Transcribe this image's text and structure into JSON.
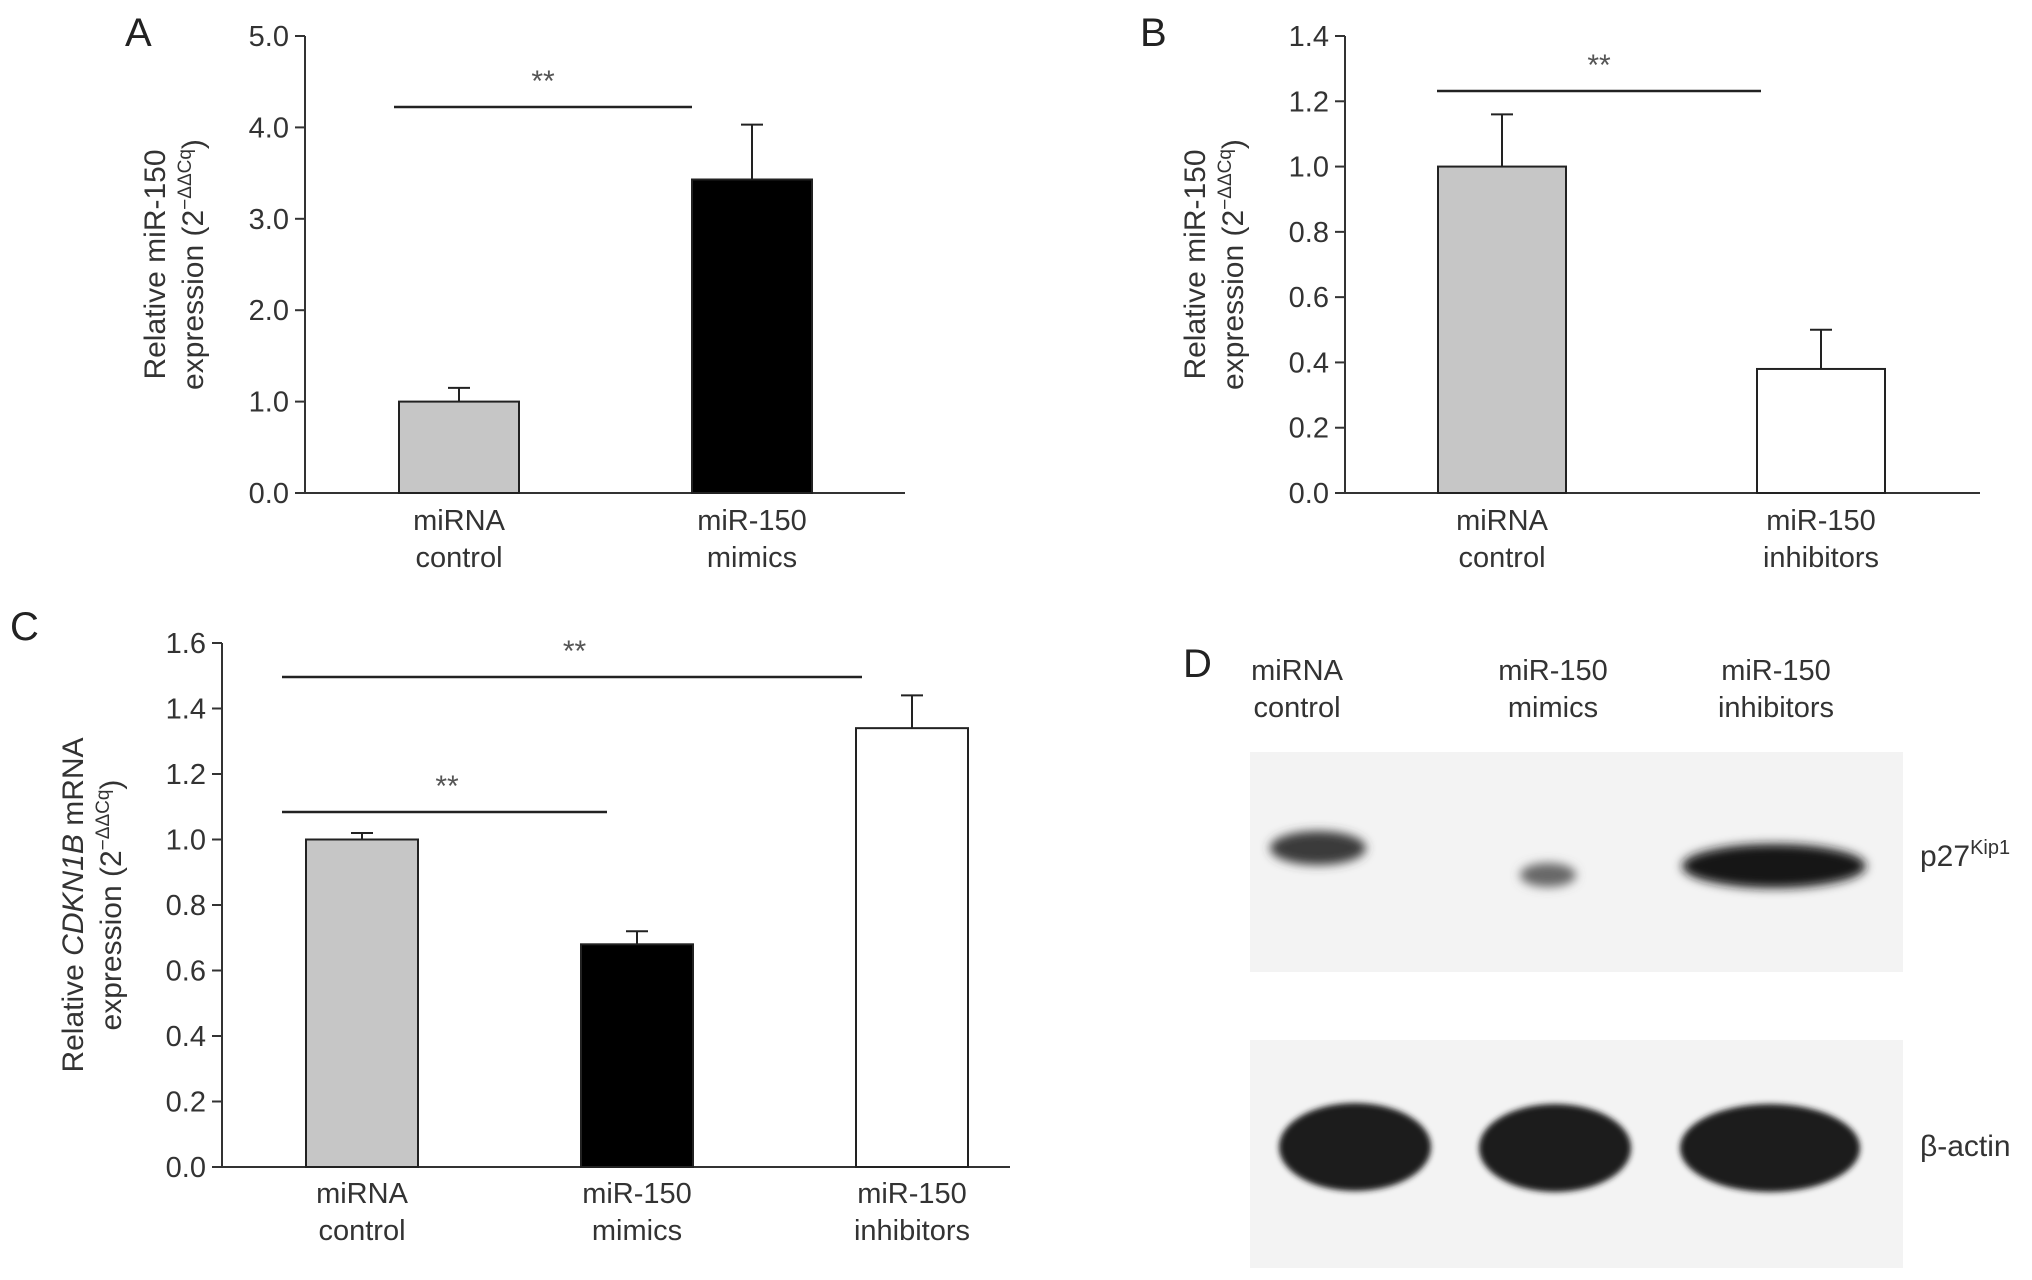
{
  "panels": {
    "a": {
      "letter": "A"
    },
    "b": {
      "letter": "B"
    },
    "c": {
      "letter": "C"
    },
    "d": {
      "letter": "D"
    }
  },
  "chart_data": [
    {
      "id": "A",
      "type": "bar",
      "ylabel": "Relative miR-150 expression (2^-ΔΔCq)",
      "ylim": [
        0,
        5
      ],
      "yticks": [
        "0.0",
        "1.0",
        "2.0",
        "3.0",
        "4.0",
        "5.0"
      ],
      "categories": [
        [
          "miRNA",
          "control"
        ],
        [
          "miR-150",
          "mimics"
        ]
      ],
      "values": [
        1.0,
        3.43
      ],
      "errors": [
        0.15,
        0.6
      ],
      "fills": [
        "#c6c6c6",
        "#000000"
      ],
      "significance": [
        {
          "from": 0,
          "to": 1,
          "label": "**"
        }
      ]
    },
    {
      "id": "B",
      "type": "bar",
      "ylabel": "Relative miR-150 expression (2^-ΔΔCq)",
      "ylim": [
        0,
        1.4
      ],
      "yticks": [
        "0.0",
        "0.2",
        "0.4",
        "0.6",
        "0.8",
        "1.0",
        "1.2",
        "1.4"
      ],
      "categories": [
        [
          "miRNA",
          "control"
        ],
        [
          "miR-150",
          "inhibitors"
        ]
      ],
      "values": [
        1.0,
        0.38
      ],
      "errors": [
        0.16,
        0.12
      ],
      "fills": [
        "#c6c6c6",
        "#ffffff"
      ],
      "significance": [
        {
          "from": 0,
          "to": 1,
          "label": "**"
        }
      ]
    },
    {
      "id": "C",
      "type": "bar",
      "ylabel": "Relative CDKN1B mRNA expression (2^-ΔΔCq)",
      "ylim": [
        0,
        1.6
      ],
      "yticks": [
        "0.0",
        "0.2",
        "0.4",
        "0.6",
        "0.8",
        "1.0",
        "1.2",
        "1.4",
        "1.6"
      ],
      "categories": [
        [
          "miRNA",
          "control"
        ],
        [
          "miR-150",
          "mimics"
        ],
        [
          "miR-150",
          "inhibitors"
        ]
      ],
      "values": [
        1.0,
        0.68,
        1.34
      ],
      "errors": [
        0.02,
        0.04,
        0.1
      ],
      "fills": [
        "#c6c6c6",
        "#000000",
        "#ffffff"
      ],
      "significance": [
        {
          "from": 0,
          "to": 1,
          "label": "**"
        },
        {
          "from": 0,
          "to": 2,
          "label": "**"
        }
      ]
    }
  ],
  "blot": {
    "lanes": [
      [
        "miRNA",
        "control"
      ],
      [
        "miR-150",
        "mimics"
      ],
      [
        "miR-150",
        "inhibitors"
      ]
    ],
    "rows": [
      {
        "protein": "p27",
        "superscript": "Kip1",
        "intensities": [
          0.75,
          0.45,
          1.0
        ]
      },
      {
        "protein": "β-actin",
        "superscript": "",
        "intensities": [
          1.0,
          1.0,
          1.0
        ]
      }
    ]
  }
}
